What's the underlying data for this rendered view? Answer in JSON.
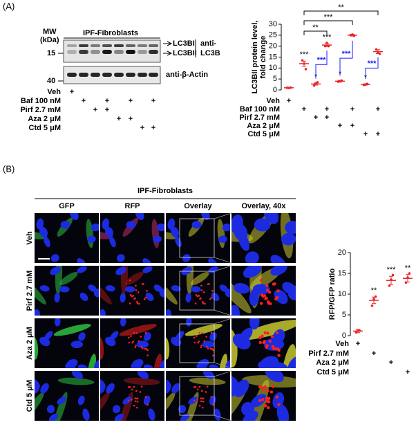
{
  "figure": {
    "panel_a": {
      "label": "(A)",
      "blot": {
        "title": "IPF-Fibroblasts",
        "mw_label": [
          "MW",
          "(kDa)"
        ],
        "mw_marks": [
          15,
          40
        ],
        "band_labels": [
          "LC3BI",
          "LC3BII"
        ],
        "antibody": [
          "anti-",
          "LC3B"
        ],
        "loading": "anti-β-Actin",
        "treatments": [
          {
            "label": "Veh",
            "marks": [
              "+",
              null,
              null,
              null,
              null,
              null,
              null,
              null
            ]
          },
          {
            "label": "Baf 100 nM",
            "marks": [
              null,
              "+",
              null,
              "+",
              null,
              "+",
              null,
              "+"
            ]
          },
          {
            "label": "Pirf 2.7 mM",
            "marks": [
              null,
              null,
              "+",
              "+",
              null,
              null,
              null,
              null
            ]
          },
          {
            "label": "Aza 2 μM",
            "marks": [
              null,
              null,
              null,
              null,
              "+",
              "+",
              null,
              null
            ]
          },
          {
            "label": "Ctd 5 μM",
            "marks": [
              null,
              null,
              null,
              null,
              null,
              null,
              "+",
              "+"
            ]
          }
        ]
      }
    },
    "panel_b": {
      "label": "(B)",
      "title": "IPF-Fibroblasts",
      "columns": [
        "GFP",
        "RFP",
        "Overlay",
        "Overlay, 40x"
      ],
      "rows": [
        "Veh",
        "Pirf 2.7 mM",
        "Aza 2 μM",
        "Ctd 5 μM"
      ]
    }
  },
  "chart_data": [
    {
      "type": "dot",
      "y_label": [
        "LC3BII protein level,",
        "fold change"
      ],
      "color": "#e8282b",
      "ylim": [
        0,
        30
      ],
      "yticks": [
        0,
        5,
        10,
        15,
        20,
        25,
        30
      ],
      "categories": [
        null,
        null,
        null,
        null,
        null,
        null,
        null,
        null
      ],
      "values": [
        1,
        12,
        2.7,
        20.5,
        4,
        25,
        2.5,
        17.5
      ],
      "errors": [
        0.2,
        1.2,
        0.5,
        0.7,
        0.4,
        0.4,
        0.3,
        0.9
      ],
      "points": [
        [
          1,
          0.9,
          1.1
        ],
        [
          13.5,
          12,
          9.5
        ],
        [
          2,
          3,
          3.5
        ],
        [
          20,
          21.5,
          20
        ],
        [
          3.8,
          4,
          4.3
        ],
        [
          25,
          25.3,
          24.7
        ],
        [
          2.3,
          2.5,
          2.8
        ],
        [
          18.5,
          17,
          16.5
        ]
      ],
      "stars": [
        null,
        "***",
        "*",
        "***",
        "*",
        null,
        "*",
        null
      ],
      "comparisons": [
        {
          "label": "**",
          "color": "#000000"
        },
        {
          "label": "***",
          "color": "#000000"
        },
        {
          "label": "**",
          "color": "#000000"
        },
        {
          "label": "***",
          "color": "#1a1aff"
        },
        {
          "label": "***",
          "color": "#1a1aff"
        },
        {
          "label": "***",
          "color": "#1a1aff"
        }
      ],
      "treatments": [
        {
          "label": "Veh",
          "marks": [
            "+",
            null,
            null,
            null,
            null,
            null,
            null,
            null
          ]
        },
        {
          "label": "Baf 100 nM",
          "marks": [
            null,
            "+",
            null,
            "+",
            null,
            "+",
            null,
            "+"
          ]
        },
        {
          "label": "Pirf 2.7 mM",
          "marks": [
            null,
            null,
            "+",
            "+",
            null,
            null,
            null,
            null
          ]
        },
        {
          "label": "Aza 2 μM",
          "marks": [
            null,
            null,
            null,
            null,
            "+",
            "+",
            null,
            null
          ]
        },
        {
          "label": "Ctd 5 μM",
          "marks": [
            null,
            null,
            null,
            null,
            null,
            null,
            "+",
            "+"
          ]
        }
      ]
    },
    {
      "type": "dot",
      "y_label": [
        "RFP/GFP ratio"
      ],
      "color": "#e8282b",
      "ylim": [
        0,
        20
      ],
      "yticks": [
        0,
        5,
        10,
        15,
        20
      ],
      "categories": [
        null,
        null,
        null,
        null
      ],
      "values": [
        1.1,
        8.5,
        13.3,
        13.8
      ],
      "errors": [
        0.4,
        0.8,
        1,
        0.9
      ],
      "points": [
        [
          0.8,
          1.3,
          1.2
        ],
        [
          7.2,
          8.8,
          9.4
        ],
        [
          12,
          13.5,
          14.6
        ],
        [
          12.8,
          14,
          15
        ]
      ],
      "stars": [
        null,
        "**",
        "***",
        "**"
      ],
      "comparisons": [],
      "treatments": [
        {
          "label": "Veh",
          "marks": [
            "+",
            null,
            null,
            null
          ]
        },
        {
          "label": "Pirf 2.7 mM",
          "marks": [
            null,
            "+",
            null,
            null
          ]
        },
        {
          "label": "Aza 2 μM",
          "marks": [
            null,
            null,
            "+",
            null
          ]
        },
        {
          "label": "Ctd 5 μM",
          "marks": [
            null,
            null,
            null,
            "+"
          ]
        }
      ]
    }
  ]
}
